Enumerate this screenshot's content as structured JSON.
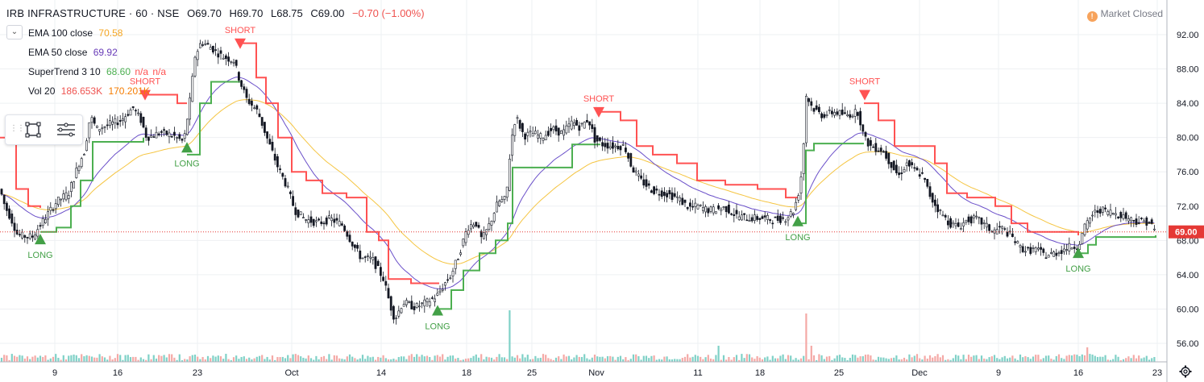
{
  "header": {
    "symbol": "IRB INFRASTRUCTURE · 60 · NSE",
    "open": "O69.70",
    "high": "H69.70",
    "low": "L68.75",
    "close": "C69.00",
    "change": "−0.70 (−1.00%)"
  },
  "indicators": [
    {
      "name": "EMA 100 close",
      "values": [
        "70.58"
      ],
      "color": "#f5a623"
    },
    {
      "name": "EMA 50 close",
      "values": [
        "69.92"
      ],
      "color": "#673ab7"
    },
    {
      "name": "SuperTrend 3 10",
      "values": [
        "68.60",
        "n/a",
        "n/a"
      ],
      "colors": [
        "#4caf50",
        "#ff5252",
        "#ff5252"
      ]
    },
    {
      "name": "Vol 20",
      "values": [
        "186.653K",
        "170.201K"
      ],
      "colors": [
        "#ef5350",
        "#f57c00"
      ]
    }
  ],
  "market_status": {
    "icon": "exclamation-icon",
    "label": "Market Closed"
  },
  "colors": {
    "up": "#26a69a",
    "down": "#ef5350",
    "ema100": "#f5c542",
    "ema50": "#6a4fc9",
    "supertrend_up": "#4caf50",
    "supertrend_down": "#ff5252",
    "last_price": "#e53935"
  },
  "chart_data": {
    "type": "line",
    "subtype": "candlestick-with-indicators",
    "y_axis_ticks": [
      "92.00",
      "88.00",
      "84.00",
      "80.00",
      "76.00",
      "72.00",
      "68.00",
      "64.00",
      "60.00",
      "56.00"
    ],
    "ylim": [
      55,
      94
    ],
    "x_axis_labels": [
      "9",
      "16",
      "23",
      "Oct",
      "14",
      "18",
      "25",
      "Nov",
      "11",
      "18",
      "25",
      "Dec",
      "9",
      "16",
      "23"
    ],
    "last_price_label": "69.00",
    "signals": [
      {
        "label": "LONG",
        "date": "9"
      },
      {
        "label": "SHORT",
        "date": "16"
      },
      {
        "label": "LONG",
        "date": "23"
      },
      {
        "label": "SHORT",
        "date": "23"
      },
      {
        "label": "LONG",
        "date": "14"
      },
      {
        "label": "SHORT",
        "date": "Nov"
      },
      {
        "label": "LONG",
        "date": "18"
      },
      {
        "label": "SHORT",
        "date": "25"
      },
      {
        "label": "LONG",
        "date": "16"
      }
    ],
    "price_path": [
      {
        "date": "Sep 9",
        "close": 68.6
      },
      {
        "date": "Sep 16",
        "close": 82.5
      },
      {
        "date": "Sep 23",
        "close": 90.5
      },
      {
        "date": "Oct",
        "close": 76.0
      },
      {
        "date": "Oct 14",
        "close": 58.5
      },
      {
        "date": "Oct 18",
        "close": 69.0
      },
      {
        "date": "Oct 25",
        "close": 81.0
      },
      {
        "date": "Nov",
        "close": 79.5
      },
      {
        "date": "Nov 11",
        "close": 71.5
      },
      {
        "date": "Nov 18",
        "close": 70.5
      },
      {
        "date": "Nov 25",
        "close": 83.0
      },
      {
        "date": "Dec",
        "close": 75.0
      },
      {
        "date": "Dec 9",
        "close": 68.5
      },
      {
        "date": "Dec 16",
        "close": 67.0
      },
      {
        "date": "Dec 23",
        "close": 69.0
      }
    ],
    "legend": "top-left",
    "grid": true
  }
}
